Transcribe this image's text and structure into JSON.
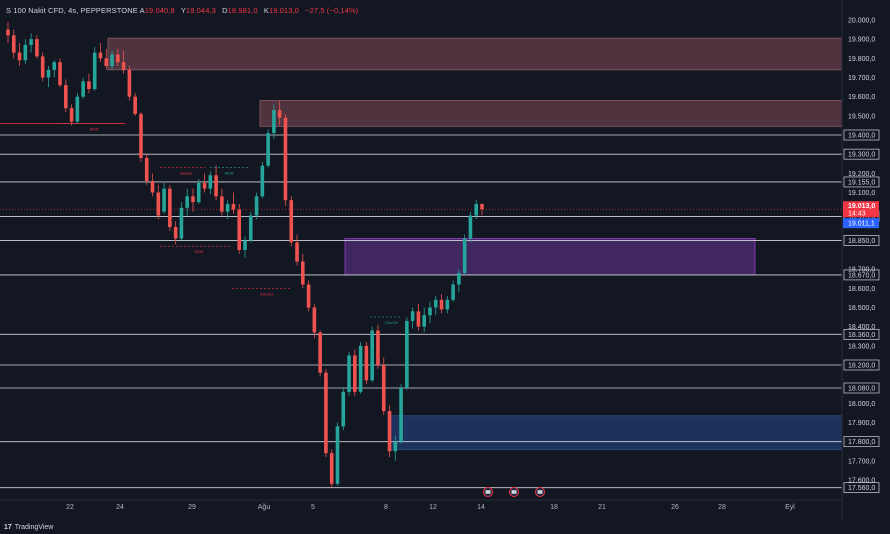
{
  "header": {
    "symbol": "S 100 Nakit CFD, 4s, PEPPERSTONE",
    "open_label": "A",
    "open_value": "19.040,8",
    "high_label": "Y",
    "high_value": "19.044,3",
    "low_label": "D",
    "low_value": "18.981,0",
    "close_label": "K",
    "close_value": "19.013,0",
    "change_value": "−27,5 (−0,14%)"
  },
  "price_axis": {
    "labels": [
      "20.000,0",
      "19.900,0",
      "19.800,0",
      "19.700,0",
      "19.600,0",
      "19.500,0",
      "19.200,0",
      "19.100,0",
      "18.700,0",
      "18.600,0",
      "18.500,0",
      "18.400,0",
      "18.300,0",
      "18.000,0",
      "17.900,0",
      "17.700,0",
      "17.600,0"
    ],
    "boxed_levels": [
      "19.400,0",
      "19.300,0",
      "19.155,0",
      "18.975,0",
      "18.850,0",
      "18.670,0",
      "18.360,0",
      "18.200,0",
      "18.080,0",
      "17.800,0",
      "17.560,0"
    ],
    "current_price": "19.013,0",
    "countdown": "14:43",
    "blue_price": "19.011,1",
    "current_color": "#f23645",
    "blue_color": "#2962ff"
  },
  "time_axis": {
    "labels": [
      "22",
      "24",
      "29",
      "Ağu",
      "5",
      "8",
      "12",
      "14",
      "18",
      "21",
      "26",
      "28",
      "Eyl"
    ]
  },
  "zones": {
    "top_zone_color": "#5b3a44",
    "mid_zone_color": "#5b3a44",
    "purple_zone_color": "#4a2a6b",
    "blue_zone_color": "#1e3766"
  },
  "annotations": [
    "BOS",
    "BOS",
    "Sweep",
    "BOS",
    "ChoCH",
    "ChoCH"
  ],
  "footer": {
    "brand": "TradingView"
  },
  "chart_data": {
    "type": "candlestick",
    "symbol": "S 100 Nakit CFD",
    "timeframe": "4s",
    "x_labels": [
      "22",
      "24",
      "29",
      "Ağu",
      "5",
      "8",
      "12",
      "14",
      "18",
      "21",
      "26",
      "28",
      "Eyl"
    ],
    "ylim": [
      17520,
      20050
    ],
    "horizontal_levels": [
      19400,
      19300,
      19155,
      18975,
      18850,
      18670,
      18360,
      18200,
      18080,
      17800,
      17560
    ],
    "zones": [
      {
        "name": "supply-upper",
        "from": 19740,
        "to": 19905
      },
      {
        "name": "supply-mid",
        "from": 19445,
        "to": 19580
      },
      {
        "name": "purple",
        "from": 18670,
        "to": 18860
      },
      {
        "name": "demand-blue",
        "from": 17760,
        "to": 17935
      }
    ],
    "candles": [
      [
        19950,
        19990,
        19880,
        19920
      ],
      [
        19920,
        19950,
        19800,
        19830
      ],
      [
        19830,
        19880,
        19760,
        19790
      ],
      [
        19790,
        19900,
        19770,
        19870
      ],
      [
        19870,
        19930,
        19830,
        19900
      ],
      [
        19900,
        19920,
        19800,
        19810
      ],
      [
        19810,
        19830,
        19680,
        19700
      ],
      [
        19700,
        19760,
        19650,
        19740
      ],
      [
        19740,
        19790,
        19700,
        19780
      ],
      [
        19780,
        19800,
        19650,
        19660
      ],
      [
        19660,
        19690,
        19520,
        19540
      ],
      [
        19540,
        19560,
        19450,
        19470
      ],
      [
        19470,
        19620,
        19460,
        19600
      ],
      [
        19600,
        19700,
        19590,
        19680
      ],
      [
        19680,
        19720,
        19620,
        19640
      ],
      [
        19640,
        19860,
        19630,
        19830
      ],
      [
        19830,
        19880,
        19780,
        19800
      ],
      [
        19800,
        19850,
        19740,
        19760
      ],
      [
        19760,
        19840,
        19740,
        19820
      ],
      [
        19820,
        19850,
        19760,
        19780
      ],
      [
        19780,
        19840,
        19720,
        19740
      ],
      [
        19740,
        19760,
        19580,
        19600
      ],
      [
        19600,
        19620,
        19500,
        19510
      ],
      [
        19510,
        19520,
        19260,
        19280
      ],
      [
        19280,
        19300,
        19140,
        19160
      ],
      [
        19160,
        19200,
        19080,
        19100
      ],
      [
        19100,
        19140,
        18960,
        18980
      ],
      [
        19000,
        19150,
        18990,
        19120
      ],
      [
        19120,
        19140,
        18900,
        18920
      ],
      [
        18920,
        18950,
        18830,
        18860
      ],
      [
        18860,
        19050,
        18850,
        19020
      ],
      [
        19020,
        19120,
        18980,
        19080
      ],
      [
        19080,
        19120,
        19000,
        19050
      ],
      [
        19050,
        19170,
        19040,
        19150
      ],
      [
        19150,
        19200,
        19100,
        19120
      ],
      [
        19120,
        19210,
        19090,
        19190
      ],
      [
        19190,
        19240,
        19060,
        19080
      ],
      [
        19080,
        19120,
        18980,
        19000
      ],
      [
        19000,
        19060,
        18960,
        19040
      ],
      [
        19040,
        19100,
        18990,
        19010
      ],
      [
        19010,
        19040,
        18780,
        18800
      ],
      [
        18800,
        18870,
        18760,
        18850
      ],
      [
        18850,
        19000,
        18840,
        18980
      ],
      [
        18980,
        19100,
        18960,
        19080
      ],
      [
        19080,
        19260,
        19070,
        19240
      ],
      [
        19240,
        19430,
        19230,
        19410
      ],
      [
        19410,
        19560,
        19380,
        19530
      ],
      [
        19530,
        19580,
        19450,
        19490
      ],
      [
        19490,
        19510,
        19030,
        19060
      ],
      [
        19060,
        19080,
        18820,
        18840
      ],
      [
        18840,
        18880,
        18720,
        18740
      ],
      [
        18740,
        18780,
        18600,
        18620
      ],
      [
        18620,
        18640,
        18480,
        18500
      ],
      [
        18500,
        18520,
        18340,
        18370
      ],
      [
        18370,
        18380,
        18140,
        18160
      ],
      [
        18160,
        18180,
        17720,
        17740
      ],
      [
        17740,
        17760,
        17560,
        17580
      ],
      [
        17580,
        17900,
        17570,
        17880
      ],
      [
        17880,
        18080,
        17860,
        18060
      ],
      [
        18060,
        18270,
        18040,
        18250
      ],
      [
        18250,
        18280,
        18040,
        18060
      ],
      [
        18060,
        18320,
        18050,
        18300
      ],
      [
        18300,
        18320,
        18100,
        18120
      ],
      [
        18120,
        18400,
        18110,
        18380
      ],
      [
        18380,
        18410,
        18180,
        18200
      ],
      [
        18200,
        18240,
        17940,
        17960
      ],
      [
        17960,
        17990,
        17720,
        17750
      ],
      [
        17750,
        17830,
        17700,
        17800
      ],
      [
        17800,
        18100,
        17790,
        18080
      ],
      [
        18080,
        18450,
        18070,
        18430
      ],
      [
        18430,
        18500,
        18390,
        18480
      ],
      [
        18480,
        18520,
        18380,
        18400
      ],
      [
        18400,
        18500,
        18370,
        18460
      ],
      [
        18460,
        18530,
        18420,
        18500
      ],
      [
        18500,
        18560,
        18460,
        18540
      ],
      [
        18540,
        18570,
        18470,
        18490
      ],
      [
        18490,
        18560,
        18470,
        18540
      ],
      [
        18540,
        18640,
        18530,
        18620
      ],
      [
        18620,
        18700,
        18580,
        18680
      ],
      [
        18680,
        18880,
        18670,
        18860
      ],
      [
        18860,
        19000,
        18840,
        18980
      ],
      [
        18980,
        19060,
        18960,
        19040
      ],
      [
        19040,
        19044,
        18981,
        19013
      ]
    ]
  }
}
